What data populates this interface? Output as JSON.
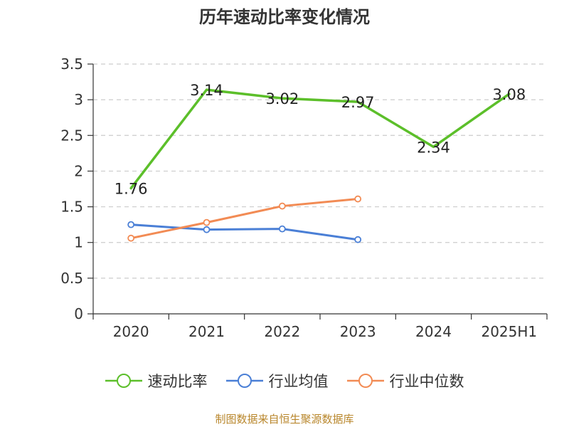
{
  "title": "历年速动比率变化情况",
  "source": "制图数据来自恒生聚源数据库",
  "chart_data": {
    "type": "line",
    "title": "历年速动比率变化情况",
    "categories": [
      "2020",
      "2021",
      "2022",
      "2023",
      "2024",
      "2025H1"
    ],
    "ylim": [
      0,
      3.5
    ],
    "yticks": [
      "0",
      "0.5",
      "1",
      "1.5",
      "2",
      "2.5",
      "3",
      "3.5"
    ],
    "grid": true,
    "legend_position": "bottom",
    "series": [
      {
        "name": "速动比率",
        "color": "#5cbf2a",
        "values": [
          1.76,
          3.14,
          3.02,
          2.97,
          2.34,
          3.08
        ],
        "labels": [
          "1.76",
          "3.14",
          "3.02",
          "2.97",
          "2.34",
          "3.08"
        ],
        "markers": false
      },
      {
        "name": "行业均值",
        "color": "#4a7fd6",
        "values": [
          1.25,
          1.18,
          1.19,
          1.04,
          null,
          null
        ],
        "markers": true
      },
      {
        "name": "行业中位数",
        "color": "#f28b54",
        "values": [
          1.06,
          1.28,
          1.51,
          1.61,
          null,
          null
        ],
        "markers": true
      }
    ]
  }
}
